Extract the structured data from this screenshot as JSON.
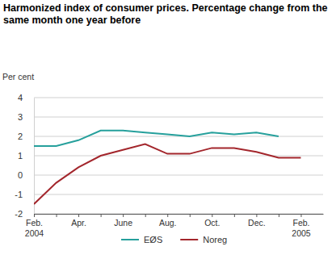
{
  "chart_data": {
    "type": "line",
    "title": "Harmonized index of consumer prices. Percentage change from the same month one year before",
    "y_label": "Per cent",
    "categories": [
      "Feb. 2004",
      null,
      "Apr.",
      null,
      "June",
      null,
      "Aug.",
      null,
      "Oct.",
      null,
      "Dec.",
      null,
      "Feb. 2005"
    ],
    "series": [
      {
        "name": "EØS",
        "color": "#26a09c",
        "values": [
          1.5,
          1.5,
          1.8,
          2.3,
          2.3,
          2.2,
          2.1,
          2.0,
          2.2,
          2.1,
          2.2,
          2.0,
          null
        ]
      },
      {
        "name": "Noreg",
        "color": "#a3262c",
        "values": [
          -1.5,
          -0.4,
          0.4,
          1.0,
          1.3,
          1.6,
          1.1,
          1.1,
          1.4,
          1.4,
          1.2,
          0.9,
          0.9
        ]
      }
    ],
    "ylim": [
      -2,
      4
    ],
    "yticks": [
      -2,
      -1,
      0,
      1,
      2,
      3,
      4
    ],
    "grid": true,
    "legend": "bottom"
  }
}
